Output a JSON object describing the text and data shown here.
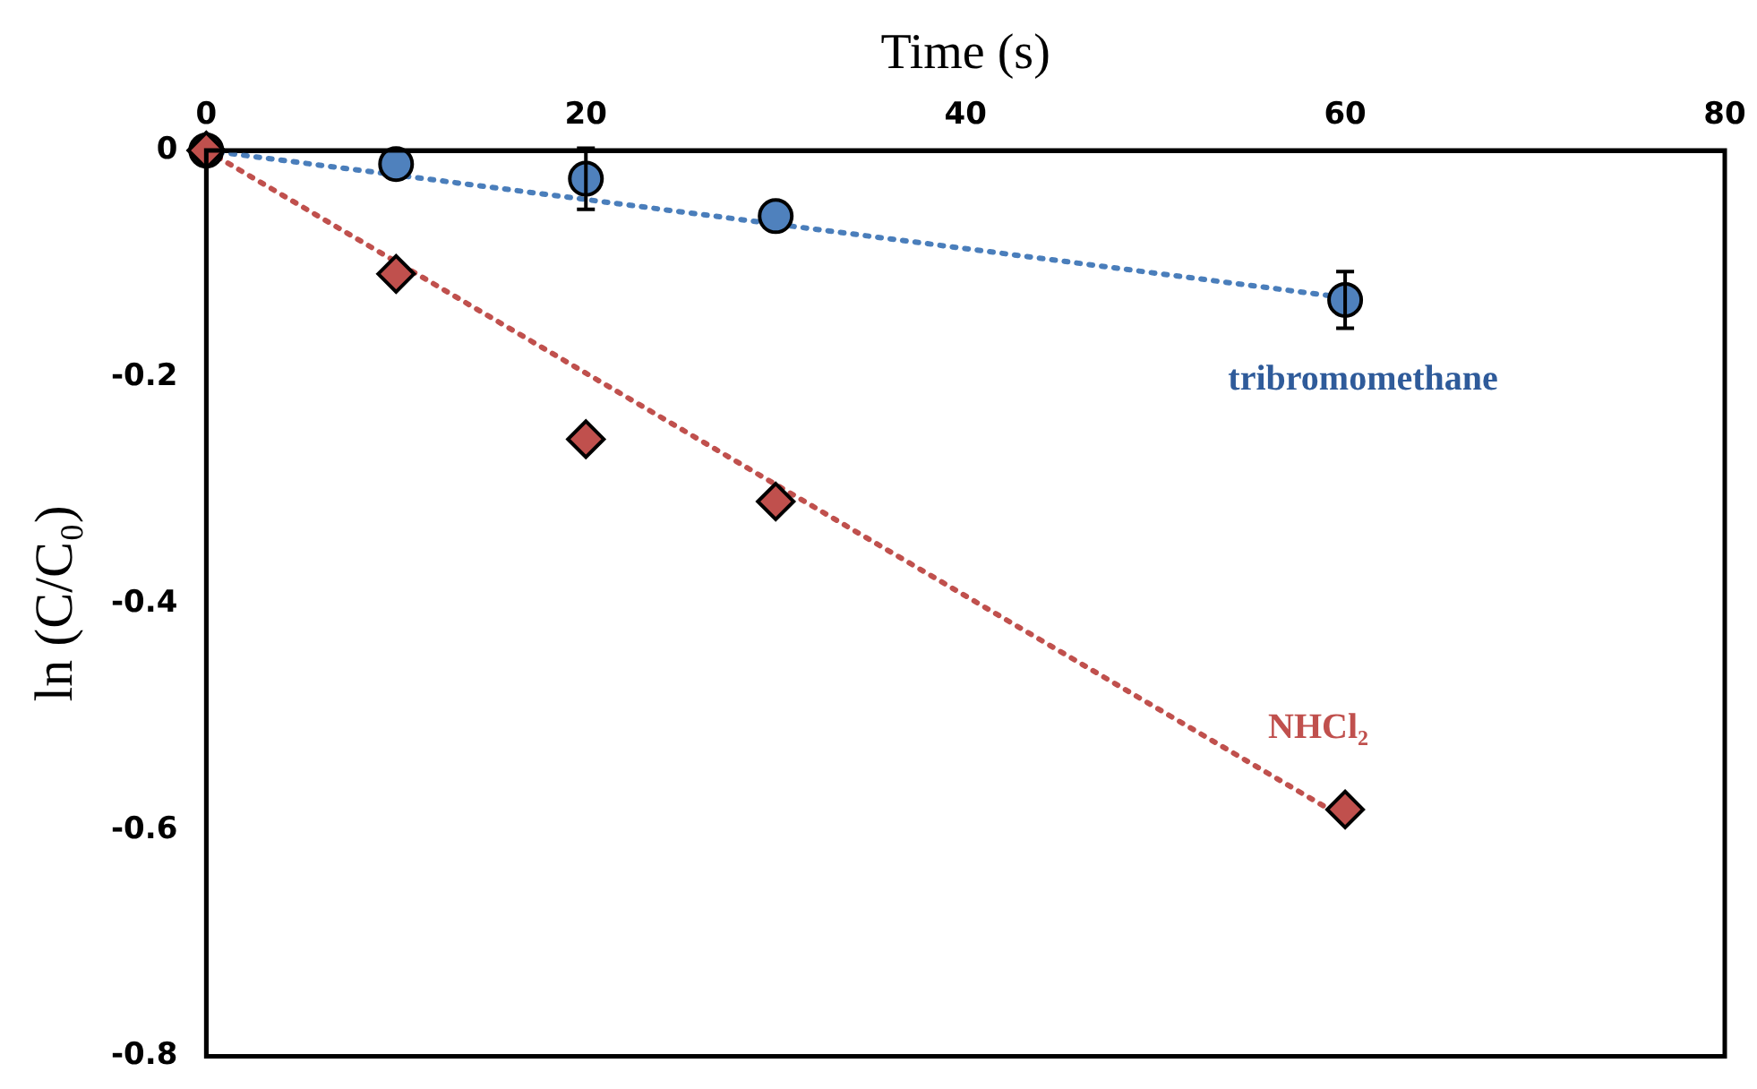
{
  "chart_data": {
    "type": "scatter",
    "xlabel": "Time (s)",
    "ylabel": "ln (C/C₀)",
    "xlim": [
      0,
      80
    ],
    "xticks": [
      0,
      20,
      40,
      60,
      80
    ],
    "ylim": [
      -0.8,
      0
    ],
    "yticks": [
      0,
      -0.2,
      -0.4,
      -0.6,
      -0.8
    ],
    "grid": false,
    "legend": false,
    "series": [
      {
        "type": "line",
        "color": "#4a7ebb",
        "line_style": "dotted",
        "marker": "none",
        "x": [
          0,
          60
        ],
        "values": [
          0,
          -0.13
        ]
      },
      {
        "type": "line",
        "color": "#c0504d",
        "line_style": "dotted",
        "marker": "none",
        "x": [
          0,
          60
        ],
        "values": [
          0,
          -0.59
        ]
      },
      {
        "name": "tribromomethane",
        "color": "#4f81bd",
        "marker": "circle",
        "x": [
          0,
          10,
          20,
          30,
          60
        ],
        "values": [
          0,
          -0.012,
          -0.025,
          -0.058,
          -0.132
        ],
        "errors": [
          null,
          null,
          0.027,
          null,
          0.025
        ]
      },
      {
        "name": "NHCl₂",
        "color": "#c0504d",
        "marker": "diamond",
        "x": [
          0,
          10,
          20,
          30,
          60
        ],
        "values": [
          0,
          -0.109,
          -0.255,
          -0.31,
          -0.582
        ]
      }
    ]
  }
}
